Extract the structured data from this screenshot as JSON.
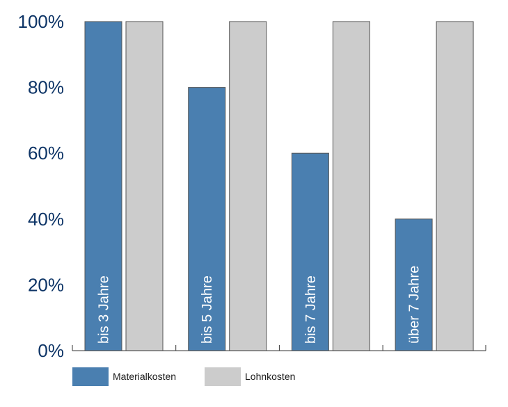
{
  "chart_data": {
    "type": "bar",
    "categories": [
      "bis 3 Jahre",
      "bis 5 Jahre",
      "bis 7 Jahre",
      "über 7 Jahre"
    ],
    "series": [
      {
        "name": "Materialkosten",
        "values": [
          100,
          80,
          60,
          40
        ],
        "color": "#4a7fb0"
      },
      {
        "name": "Lohnkosten",
        "values": [
          100,
          100,
          100,
          100
        ],
        "color": "#cccccc"
      }
    ],
    "ylim": [
      0,
      100
    ],
    "yticks": [
      0,
      20,
      40,
      60,
      80,
      100
    ],
    "ytick_labels": [
      "0%",
      "20%",
      "40%",
      "60%",
      "80%",
      "100%"
    ],
    "category_labels_inside_bars": true,
    "legend_position": "bottom-left",
    "grid": false
  }
}
